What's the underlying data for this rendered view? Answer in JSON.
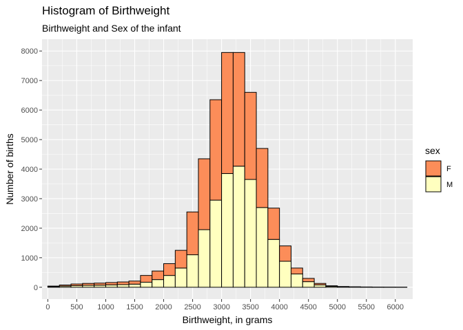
{
  "chart_data": {
    "type": "bar",
    "subtype": "stacked-histogram",
    "title": "Histogram of Birthweight",
    "subtitle": "Birthweight and Sex of the infant",
    "xlabel": "Birthweight, in grams",
    "ylabel": "Number of births",
    "xlim": [
      -100,
      6300
    ],
    "ylim": [
      -400,
      8400
    ],
    "x_ticks": [
      0,
      500,
      1000,
      1500,
      2000,
      2500,
      3000,
      3500,
      4000,
      4500,
      5000,
      5500,
      6000
    ],
    "y_ticks": [
      0,
      1000,
      2000,
      3000,
      4000,
      5000,
      6000,
      7000,
      8000
    ],
    "grid": true,
    "bin_width": 200,
    "bin_centers": [
      100,
      300,
      500,
      700,
      900,
      1100,
      1300,
      1500,
      1700,
      1900,
      2100,
      2300,
      2500,
      2700,
      2900,
      3100,
      3300,
      3500,
      3700,
      3900,
      4100,
      4300,
      4500,
      4700,
      4900,
      5100,
      5300,
      5500,
      5700,
      5900,
      6100
    ],
    "series": [
      {
        "name": "M",
        "color": "#FFFFBF",
        "values": [
          20,
          40,
          55,
          65,
          70,
          80,
          90,
          105,
          170,
          260,
          400,
          650,
          1100,
          1950,
          2950,
          3850,
          4100,
          3650,
          2700,
          1620,
          880,
          450,
          190,
          80,
          30,
          15,
          10,
          5,
          3,
          2,
          1
        ]
      },
      {
        "name": "F",
        "color": "#FC8D59",
        "values": [
          20,
          35,
          55,
          65,
          70,
          80,
          90,
          105,
          230,
          290,
          400,
          600,
          1450,
          2400,
          3400,
          4100,
          3850,
          2950,
          2000,
          1060,
          520,
          200,
          110,
          50,
          20,
          10,
          5,
          5,
          2,
          1,
          1
        ]
      }
    ],
    "legend": {
      "title": "sex",
      "position": "right",
      "entries": [
        {
          "label": "F",
          "color": "#FC8D59"
        },
        {
          "label": "M",
          "color": "#FFFFBF"
        }
      ]
    },
    "colors": {
      "panel_background": "#EBEBEB",
      "grid_major": "#FFFFFF",
      "bar_outline": "#000000",
      "tick_text": "#4D4D4D"
    }
  }
}
